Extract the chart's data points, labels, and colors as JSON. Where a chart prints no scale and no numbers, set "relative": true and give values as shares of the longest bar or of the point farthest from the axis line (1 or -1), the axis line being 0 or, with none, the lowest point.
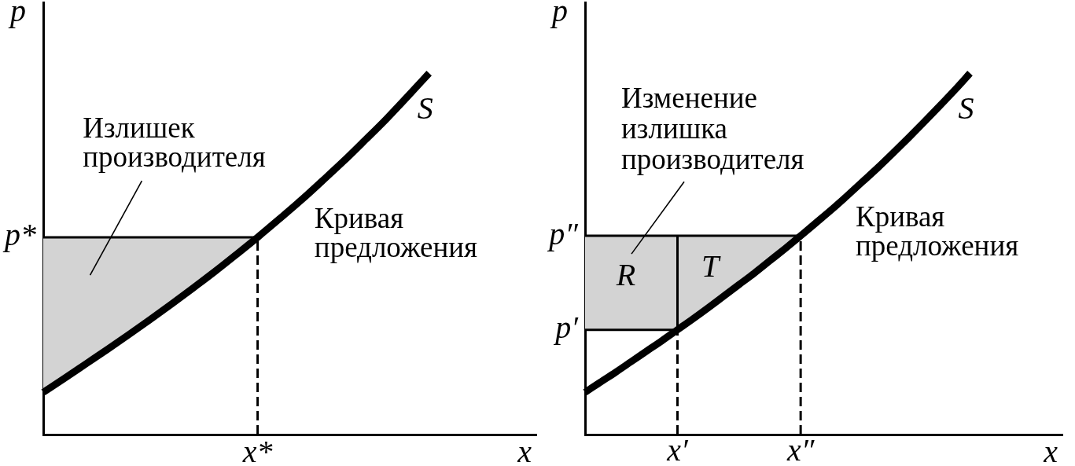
{
  "chart_data": [
    {
      "type": "line",
      "relative": true,
      "xlabel": "x",
      "ylabel": "p",
      "categories": [
        null,
        null,
        null,
        null,
        null,
        null,
        null,
        null,
        null,
        null,
        null,
        null,
        null,
        null,
        null,
        null,
        null,
        null,
        null,
        null,
        null,
        null,
        null,
        null
      ],
      "series": [
        {
          "name": "S",
          "color": "#000000",
          "values": [
            0.117,
            0.156,
            0.196,
            0.236,
            0.277,
            0.319,
            0.362,
            0.406,
            0.451,
            0.498,
            0.546,
            0.596,
            0.647,
            0.701,
            0.756,
            0.814,
            0.873,
            0.936,
            1.0,
            null,
            null,
            null,
            null,
            null
          ]
        }
      ],
      "ref_lines": [
        {
          "axis": "y",
          "value": 0.546,
          "label": "p*"
        }
      ],
      "bands": [
        {
          "axis": "y",
          "from": 0.117,
          "to": 0.546,
          "color": "#d3d3d3"
        }
      ],
      "annotations": [
        "Излишек производителя",
        "Кривая предложения",
        "x*"
      ]
    },
    {
      "type": "line",
      "relative": true,
      "xlabel": "x",
      "ylabel": "p",
      "categories": [
        null,
        null,
        null,
        null,
        null,
        null,
        "x′",
        null,
        null,
        null,
        null,
        null,
        null,
        null,
        "x″",
        null,
        null,
        null,
        null,
        null,
        null,
        null,
        null,
        null,
        null,
        null,
        null,
        null,
        null,
        null,
        null,
        null
      ],
      "series": [
        {
          "name": "S",
          "color": "#000000",
          "values": [
            0.117,
            0.145,
            0.173,
            0.202,
            0.231,
            0.26,
            0.29,
            0.32,
            0.351,
            0.383,
            0.415,
            0.447,
            0.481,
            0.515,
            0.55,
            0.586,
            0.622,
            0.66,
            0.699,
            0.738,
            0.779,
            0.821,
            0.864,
            0.908,
            0.953,
            1.0,
            null,
            null,
            null,
            null,
            null,
            null
          ]
        }
      ],
      "ref_lines": [
        {
          "axis": "y",
          "value": 0.55,
          "label": "p″"
        },
        {
          "axis": "y",
          "value": 0.29,
          "label": "p′"
        },
        {
          "axis": "x",
          "value": "x′",
          "line_style": "dashed"
        },
        {
          "axis": "x",
          "value": "x″",
          "line_style": "dashed"
        }
      ],
      "bands": [
        {
          "axis": "y",
          "from": 0.29,
          "to": 0.55,
          "color": "#d3d3d3"
        }
      ],
      "annotations": [
        "Изменение излишка производителя",
        "R",
        "T",
        "Кривая предложения"
      ]
    }
  ]
}
